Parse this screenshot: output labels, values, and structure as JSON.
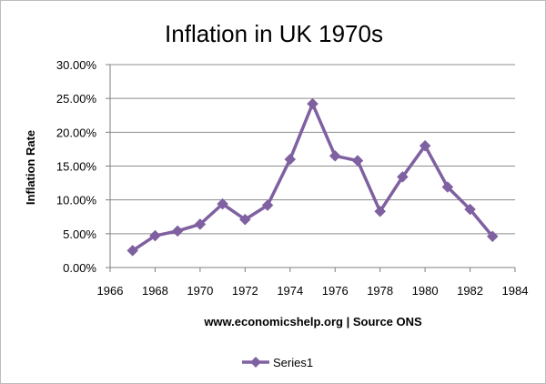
{
  "chart_data": {
    "type": "line",
    "title": "Inflation in UK 1970s",
    "xlabel": "www.economicshelp.org | Source ONS",
    "ylabel": "Inflation Rate",
    "xlim": [
      1966,
      1984
    ],
    "ylim": [
      0,
      0.3
    ],
    "x_ticks": [
      "1966",
      "1968",
      "1970",
      "1972",
      "1974",
      "1976",
      "1978",
      "1980",
      "1982",
      "1984"
    ],
    "y_ticks": [
      "0.00%",
      "5.00%",
      "10.00%",
      "15.00%",
      "20.00%",
      "25.00%",
      "30.00%"
    ],
    "grid": "horizontal",
    "legend_position": "bottom",
    "series": [
      {
        "name": "Series1",
        "color": "#7f60a0",
        "marker": "diamond",
        "x": [
          1967,
          1968,
          1969,
          1970,
          1971,
          1972,
          1973,
          1974,
          1975,
          1976,
          1977,
          1978,
          1979,
          1980,
          1981,
          1982,
          1983
        ],
        "y": [
          0.025,
          0.047,
          0.054,
          0.064,
          0.094,
          0.071,
          0.092,
          0.16,
          0.242,
          0.165,
          0.158,
          0.083,
          0.134,
          0.18,
          0.119,
          0.086,
          0.046
        ]
      }
    ]
  }
}
